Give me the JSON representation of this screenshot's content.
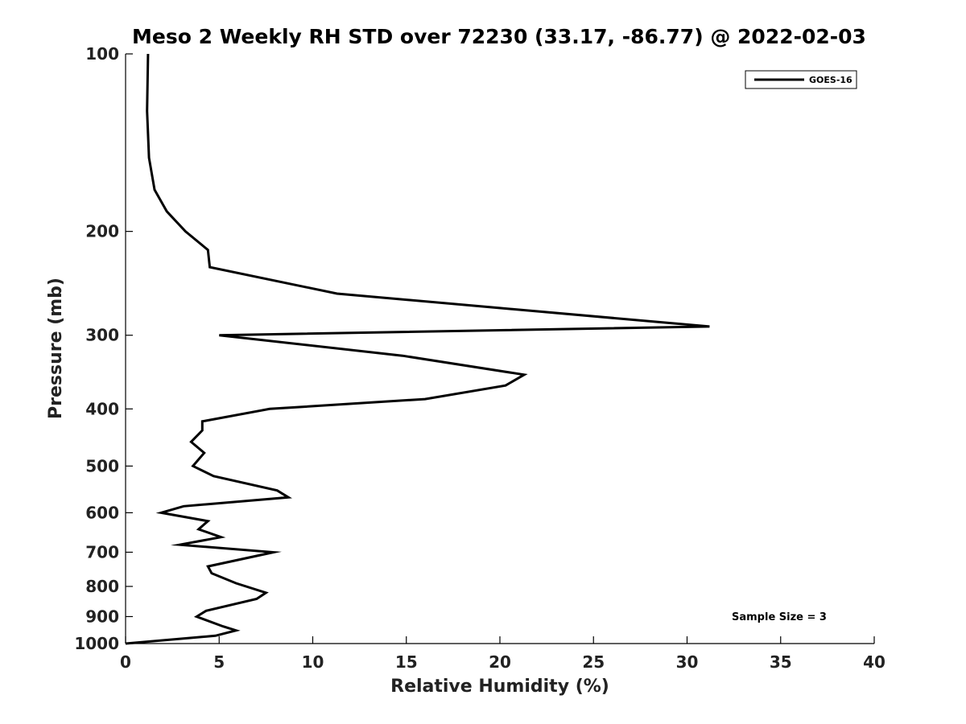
{
  "chart_data": {
    "type": "line",
    "title": "Meso 2 Weekly RH STD over 72230 (33.17, -86.77) @ 2022-02-03",
    "xlabel": "Relative Humidity (%)",
    "ylabel": "Pressure (mb)",
    "xlim": [
      0,
      40
    ],
    "ylim": [
      100,
      1000
    ],
    "y_scale": "log",
    "y_reversed": true,
    "grid": false,
    "x_ticks": [
      0,
      5,
      10,
      15,
      20,
      25,
      30,
      35,
      40
    ],
    "y_ticks": [
      100,
      200,
      300,
      400,
      500,
      600,
      700,
      800,
      900,
      1000
    ],
    "legend": {
      "position": "top-right",
      "entries": [
        "GOES-16"
      ]
    },
    "annotation": "Sample Size = 3",
    "series": [
      {
        "name": "GOES-16",
        "color": "#000000",
        "x": [
          1.2,
          1.15,
          1.25,
          1.55,
          2.2,
          3.2,
          4.4,
          4.5,
          11.3,
          31.2,
          5.0,
          14.8,
          21.3,
          20.3,
          16.0,
          7.7,
          4.1,
          4.1,
          3.5,
          4.2,
          3.6,
          4.7,
          8.1,
          8.7,
          3.1,
          1.9,
          4.4,
          3.9,
          5.1,
          2.9,
          7.9,
          4.4,
          4.6,
          5.9,
          7.5,
          7.0,
          4.3,
          3.8,
          5.2,
          5.9,
          4.8,
          0.0
        ],
        "y": [
          100,
          125,
          150,
          170,
          185,
          200,
          215,
          230,
          255,
          290,
          300,
          325,
          350,
          365,
          385,
          400,
          420,
          435,
          455,
          475,
          500,
          520,
          550,
          565,
          585,
          600,
          620,
          640,
          660,
          680,
          700,
          740,
          760,
          790,
          820,
          840,
          880,
          900,
          935,
          950,
          970,
          1000
        ]
      }
    ]
  }
}
